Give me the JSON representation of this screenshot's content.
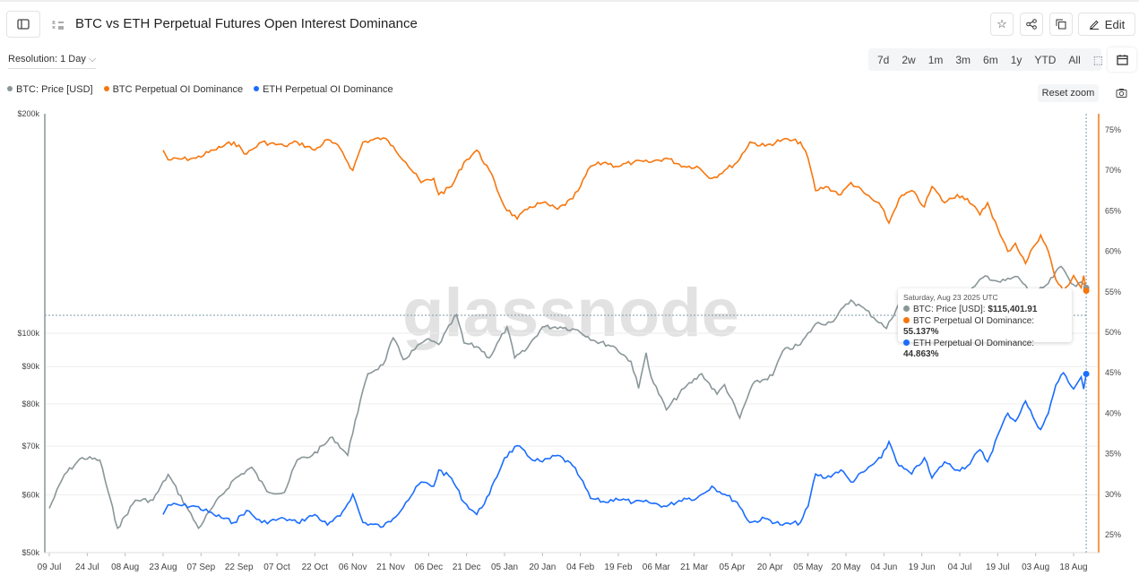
{
  "header": {
    "title": "BTC vs ETH Perpetual Futures Open Interest Dominance",
    "edit_label": "Edit",
    "icons": [
      "sidebar-toggle-icon",
      "metric-icon",
      "star-icon",
      "share-icon",
      "copy-icon",
      "pencil-icon"
    ]
  },
  "controls": {
    "resolution": "Resolution: 1 Day",
    "ranges": [
      "7d",
      "2w",
      "1m",
      "3m",
      "6m",
      "1y",
      "YTD",
      "All"
    ],
    "reset_zoom": "Reset zoom",
    "icons": [
      "zoom-select-icon",
      "calendar-icon",
      "camera-icon"
    ]
  },
  "watermark": "glassnode",
  "tooltip": {
    "date": "Saturday, Aug 23 2025 UTC",
    "rows": [
      {
        "label": "BTC: Price [USD]: ",
        "value": "$115,401.91",
        "color": "#8a9699"
      },
      {
        "label": "BTC Perpetual OI Dominance: ",
        "value": "55.137%",
        "color": "#f7760d"
      },
      {
        "label": "ETH Perpetual OI Dominance: ",
        "value": "44.863%",
        "color": "#1a6dff"
      }
    ]
  },
  "chart_data": {
    "type": "line",
    "legend": [
      "BTC: Price [USD]",
      "BTC Perpetual OI Dominance",
      "ETH Perpetual OI Dominance"
    ],
    "legend_position": "top-left",
    "colors": {
      "price": "#8a9699",
      "btc_dom": "#f7760d",
      "eth_dom": "#1a6dff"
    },
    "x_ticks": [
      "09 Jul",
      "24 Jul",
      "08 Aug",
      "23 Aug",
      "07 Sep",
      "22 Sep",
      "07 Oct",
      "22 Oct",
      "06 Nov",
      "21 Nov",
      "06 Dec",
      "21 Dec",
      "05 Jan",
      "20 Jan",
      "04 Feb",
      "19 Feb",
      "06 Mar",
      "21 Mar",
      "05 Apr",
      "20 Apr",
      "05 May",
      "20 May",
      "04 Jun",
      "19 Jun",
      "04 Jul",
      "19 Jul",
      "03 Aug",
      "18 Aug"
    ],
    "x_range": [
      "2024-07-09",
      "2025-08-23"
    ],
    "y_left": {
      "scale": "log",
      "range": [
        50000,
        200000
      ],
      "ticks": [
        {
          "v": 200000,
          "l": "$200k"
        },
        {
          "v": 100000,
          "l": "$100k"
        },
        {
          "v": 90000,
          "l": "$90k"
        },
        {
          "v": 80000,
          "l": "$80k"
        },
        {
          "v": 70000,
          "l": "$70k"
        },
        {
          "v": 60000,
          "l": "$60k"
        },
        {
          "v": 50000,
          "l": "$50k"
        }
      ]
    },
    "y_right": {
      "scale": "linear",
      "range": [
        23,
        77
      ],
      "ticks": [
        "75%",
        "70%",
        "65%",
        "60%",
        "55%",
        "50%",
        "45%",
        "40%",
        "35%",
        "30%",
        "25%"
      ]
    },
    "price": [
      [
        "2024-07-09",
        57500
      ],
      [
        "2024-07-15",
        64000
      ],
      [
        "2024-07-22",
        67500
      ],
      [
        "2024-07-29",
        67000
      ],
      [
        "2024-08-05",
        54000
      ],
      [
        "2024-08-12",
        59000
      ],
      [
        "2024-08-19",
        59000
      ],
      [
        "2024-08-25",
        64000
      ],
      [
        "2024-09-01",
        58000
      ],
      [
        "2024-09-06",
        54000
      ],
      [
        "2024-09-12",
        58000
      ],
      [
        "2024-09-20",
        63000
      ],
      [
        "2024-09-27",
        65500
      ],
      [
        "2024-10-03",
        60700
      ],
      [
        "2024-10-10",
        60500
      ],
      [
        "2024-10-15",
        67000
      ],
      [
        "2024-10-21",
        68000
      ],
      [
        "2024-10-29",
        72000
      ],
      [
        "2024-11-04",
        68000
      ],
      [
        "2024-11-07",
        76000
      ],
      [
        "2024-11-12",
        88000
      ],
      [
        "2024-11-18",
        90500
      ],
      [
        "2024-11-22",
        98500
      ],
      [
        "2024-11-26",
        92000
      ],
      [
        "2024-12-05",
        98000
      ],
      [
        "2024-12-10",
        96500
      ],
      [
        "2024-12-17",
        106000
      ],
      [
        "2024-12-20",
        97000
      ],
      [
        "2024-12-26",
        95500
      ],
      [
        "2024-12-30",
        92500
      ],
      [
        "2025-01-06",
        102000
      ],
      [
        "2025-01-09",
        92500
      ],
      [
        "2025-01-13",
        94500
      ],
      [
        "2025-01-20",
        102000
      ],
      [
        "2025-01-27",
        102000
      ],
      [
        "2025-02-03",
        101000
      ],
      [
        "2025-02-10",
        97500
      ],
      [
        "2025-02-17",
        96000
      ],
      [
        "2025-02-24",
        91500
      ],
      [
        "2025-02-27",
        84000
      ],
      [
        "2025-03-02",
        94000
      ],
      [
        "2025-03-04",
        87000
      ],
      [
        "2025-03-10",
        78500
      ],
      [
        "2025-03-17",
        84000
      ],
      [
        "2025-03-24",
        88000
      ],
      [
        "2025-03-30",
        82500
      ],
      [
        "2025-04-02",
        85000
      ],
      [
        "2025-04-08",
        76500
      ],
      [
        "2025-04-13",
        85000
      ],
      [
        "2025-04-21",
        87500
      ],
      [
        "2025-04-25",
        94500
      ],
      [
        "2025-05-02",
        96500
      ],
      [
        "2025-05-08",
        103000
      ],
      [
        "2025-05-14",
        103500
      ],
      [
        "2025-05-22",
        111000
      ],
      [
        "2025-05-28",
        107500
      ],
      [
        "2025-06-05",
        101500
      ],
      [
        "2025-06-10",
        110000
      ],
      [
        "2025-06-17",
        104500
      ],
      [
        "2025-06-22",
        101000
      ],
      [
        "2025-06-27",
        107000
      ],
      [
        "2025-07-03",
        109500
      ],
      [
        "2025-07-10",
        116000
      ],
      [
        "2025-07-14",
        119800
      ],
      [
        "2025-07-20",
        117500
      ],
      [
        "2025-07-27",
        119500
      ],
      [
        "2025-08-02",
        112500
      ],
      [
        "2025-08-08",
        117000
      ],
      [
        "2025-08-13",
        123500
      ],
      [
        "2025-08-18",
        116500
      ],
      [
        "2025-08-22",
        116800
      ],
      [
        "2025-08-23",
        115401.91
      ]
    ],
    "dominance_dates": [
      "2024-08-23",
      "2024-08-25",
      "2024-09-05",
      "2024-09-12",
      "2024-09-20",
      "2024-09-25",
      "2024-10-01",
      "2024-10-10",
      "2024-10-15",
      "2024-10-22",
      "2024-10-27",
      "2024-11-01",
      "2024-11-06",
      "2024-11-10",
      "2024-11-18",
      "2024-11-22",
      "2024-11-27",
      "2024-12-03",
      "2024-12-08",
      "2024-12-10",
      "2024-12-15",
      "2024-12-20",
      "2024-12-25",
      "2024-12-30",
      "2025-01-05",
      "2025-01-10",
      "2025-01-15",
      "2025-01-20",
      "2025-01-26",
      "2025-02-01",
      "2025-02-04",
      "2025-02-08",
      "2025-02-14",
      "2025-02-18",
      "2025-02-25",
      "2025-03-03",
      "2025-03-10",
      "2025-03-17",
      "2025-03-22",
      "2025-03-28",
      "2025-04-02",
      "2025-04-07",
      "2025-04-12",
      "2025-04-18",
      "2025-04-25",
      "2025-05-02",
      "2025-05-05",
      "2025-05-08",
      "2025-05-12",
      "2025-05-18",
      "2025-05-22",
      "2025-05-28",
      "2025-06-03",
      "2025-06-06",
      "2025-06-10",
      "2025-06-15",
      "2025-06-20",
      "2025-06-23",
      "2025-06-28",
      "2025-07-03",
      "2025-07-07",
      "2025-07-12",
      "2025-07-15",
      "2025-07-20",
      "2025-07-23",
      "2025-07-26",
      "2025-07-30",
      "2025-08-02",
      "2025-08-05",
      "2025-08-08",
      "2025-08-11",
      "2025-08-14",
      "2025-08-18",
      "2025-08-21",
      "2025-08-22",
      "2025-08-23"
    ],
    "btc_dominance": [
      72.5,
      71.3,
      71.5,
      72.5,
      73.5,
      72,
      73.5,
      73,
      73.5,
      72.5,
      73.8,
      72.7,
      70,
      73.5,
      74,
      73,
      71,
      68.5,
      69,
      67,
      68,
      71,
      72.5,
      70,
      65.5,
      64,
      65.5,
      66,
      65.2,
      66.5,
      68,
      70.5,
      71,
      70.5,
      71,
      71,
      71.5,
      70.5,
      70.5,
      69,
      70,
      71,
      73.5,
      73,
      73.8,
      73.5,
      71.5,
      67.5,
      68,
      67,
      68.5,
      67,
      65.5,
      63.5,
      66.5,
      67.5,
      65.5,
      68,
      66,
      67,
      66.5,
      64.5,
      66,
      62,
      60,
      61,
      58.5,
      60.5,
      62,
      60,
      56.5,
      55,
      57,
      55.5,
      57,
      55.137
    ],
    "eth_dominance": [
      27.5,
      28.7,
      28.5,
      27.5,
      26.5,
      28,
      26.5,
      27,
      26.5,
      27.5,
      26.2,
      27.3,
      30,
      26.5,
      26,
      27,
      29,
      31.5,
      31,
      33,
      32,
      29,
      27.5,
      30,
      34.5,
      36,
      34.5,
      34,
      34.8,
      33.5,
      32,
      29.5,
      29,
      29.5,
      29,
      29,
      28.5,
      29.5,
      29.5,
      31,
      30,
      29,
      26.5,
      27,
      26.2,
      26.5,
      28.5,
      32.5,
      32,
      33,
      31.5,
      33,
      34.5,
      36.5,
      33.5,
      32.5,
      34.5,
      32,
      34,
      33,
      33.5,
      35.5,
      34,
      38,
      40,
      39,
      41.5,
      39.5,
      38,
      40,
      43.5,
      45,
      43,
      44.5,
      43,
      44.863
    ]
  }
}
